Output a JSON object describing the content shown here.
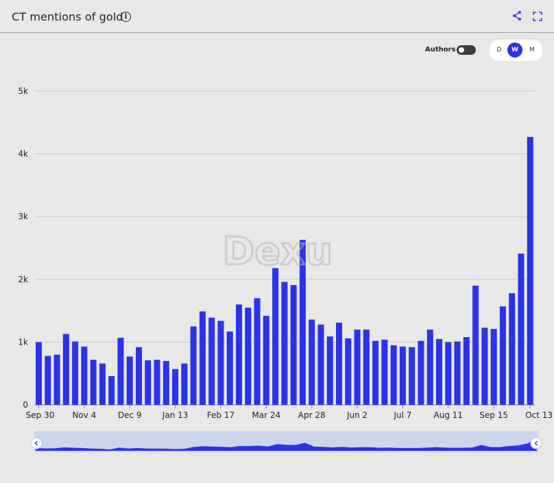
{
  "header": {
    "title": "CT mentions of gold",
    "info_icon": "info-icon",
    "share_icon": "share-icon",
    "fullscreen_icon": "fullscreen-icon"
  },
  "controls": {
    "authors_label": "Authors",
    "authors_toggle_on": false,
    "periods": [
      "D",
      "W",
      "M"
    ],
    "active_period": "W"
  },
  "watermark": "Dexu",
  "colors": {
    "bar": "#2b33ea",
    "grid": "#c8c8c8",
    "brush_fill": "#cdd5ec",
    "brush_area": "#2b33ea"
  },
  "chart_data": {
    "type": "bar",
    "x_tick_labels": [
      "Sep 30",
      "Nov 4",
      "Dec 9",
      "Jan 13",
      "Feb 17",
      "Mar 24",
      "Apr 28",
      "Jun 2",
      "Jul 7",
      "Aug 11",
      "Sep 15",
      "Oct 13"
    ],
    "y_tick_labels": [
      "0",
      "1k",
      "2k",
      "3k",
      "4k",
      "5k"
    ],
    "ylim": [
      0,
      5000
    ],
    "grid": true,
    "values": [
      1000,
      780,
      800,
      1130,
      1010,
      930,
      720,
      660,
      460,
      1070,
      770,
      920,
      710,
      720,
      700,
      570,
      660,
      1250,
      1490,
      1390,
      1340,
      1170,
      1600,
      1550,
      1700,
      1420,
      2180,
      1960,
      1910,
      2630,
      1360,
      1280,
      1090,
      1310,
      1060,
      1200,
      1200,
      1020,
      1040,
      950,
      930,
      920,
      1020,
      1200,
      1050,
      1000,
      1010,
      1080,
      1900,
      1230,
      1210,
      1570,
      1780,
      2410,
      4270
    ]
  }
}
